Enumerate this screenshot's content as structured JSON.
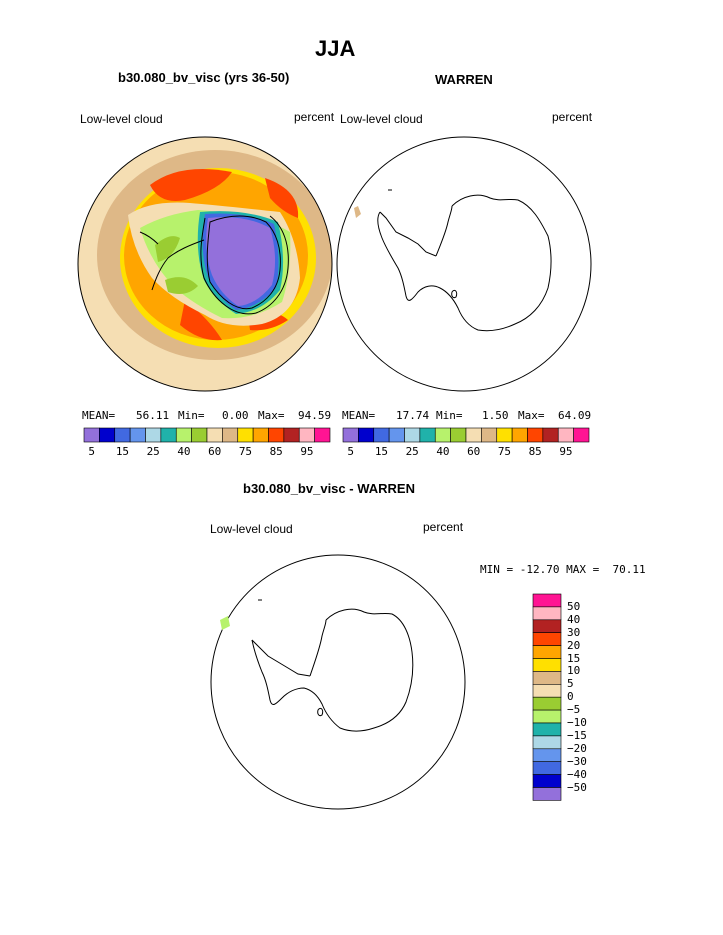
{
  "title": "JJA",
  "panels": {
    "model": {
      "title": "b30.080_bv_visc (yrs 36-50)",
      "variable": "Low-level cloud",
      "units": "percent",
      "mean_label": "MEAN=",
      "mean": "56.11",
      "min_label": "Min=",
      "min": "0.00",
      "max_label": "Max=",
      "max": "94.59"
    },
    "obs": {
      "title": "WARREN",
      "variable": "Low-level cloud",
      "units": "percent",
      "mean_label": "MEAN=",
      "mean": "17.74",
      "min_label": "Min=",
      "min": "1.50",
      "max_label": "Max=",
      "max": "64.09"
    },
    "diff": {
      "title": "b30.080_bv_visc - WARREN",
      "variable": "Low-level cloud",
      "units": "percent",
      "minmax_text": "MIN = -12.70 MAX =  70.11"
    }
  },
  "colorbar_top": {
    "colors": [
      "#9370DB",
      "#0000CD",
      "#4169E1",
      "#6495ED",
      "#ADD8E6",
      "#20B2AA",
      "#B7F26C",
      "#9ACD32",
      "#F5DEB3",
      "#DEB887",
      "#FFE000",
      "#FFA500",
      "#FF4500",
      "#B22222",
      "#FFB6C1",
      "#FF1493"
    ],
    "labels": [
      "5",
      "15",
      "25",
      "40",
      "60",
      "75",
      "85",
      "95"
    ]
  },
  "colorbar_diff": {
    "colors": [
      "#FF1493",
      "#FFB6C1",
      "#B22222",
      "#FF4500",
      "#FFA500",
      "#FFE000",
      "#DEB887",
      "#F5DEB3",
      "#9ACD32",
      "#B7F26C",
      "#20B2AA",
      "#ADD8E6",
      "#6495ED",
      "#4169E1",
      "#0000CD",
      "#9370DB"
    ],
    "labels": [
      "50",
      "40",
      "30",
      "20",
      "15",
      "10",
      "5",
      "0",
      "−5",
      "−10",
      "−15",
      "−20",
      "−30",
      "−40",
      "−50"
    ]
  }
}
